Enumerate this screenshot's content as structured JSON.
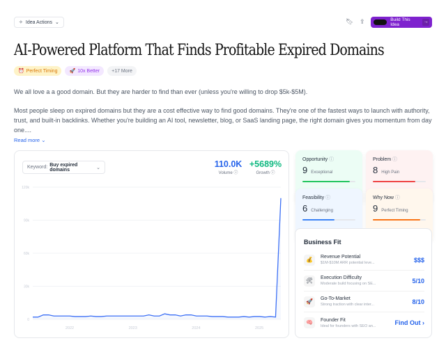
{
  "header": {
    "idea_actions": "Idea Actions",
    "build_label": "Build This Idea"
  },
  "title": "AI-Powered Platform That Finds Profitable Expired Domains",
  "tags": [
    {
      "icon": "alarm-clock-icon",
      "label": "Perfect Timing",
      "color": "#fef3c7",
      "text": "#d97706"
    },
    {
      "icon": "rocket-icon",
      "label": "10x Better",
      "color": "#f3e8ff",
      "text": "#9333ea"
    },
    {
      "label": "+17 More"
    }
  ],
  "description": [
    "We all love a a good domain. But they are harder to find than ever (unless you're willing to drop $5k-$5M).",
    "Most people sleep on expired domains but they are a cost effective way to find good domains. They're one of the fastest ways to launch with authority, trust, and built-in backlinks. Whether you're building an AI tool, newsletter, blog, or SaaS landing page, the right domain gives you momentum from day one...."
  ],
  "read_more": "Read more",
  "trend": {
    "keyword_label": "Keyword:",
    "keyword": "Buy expired domains",
    "volume": "110.0K",
    "volume_label": "Volume",
    "growth": "+5689%",
    "growth_label": "Growth"
  },
  "chart_data": {
    "type": "line",
    "ylim": [
      0,
      120000
    ],
    "yticks": [
      "0",
      "30k",
      "60k",
      "90k",
      "120k"
    ],
    "xticks": [
      "2022",
      "2023",
      "2024",
      "2025"
    ],
    "x_start": "2021-06",
    "x_interval": "month",
    "grid": true,
    "color": "#3b6ff5",
    "values": [
      2000,
      2000,
      4000,
      4000,
      3000,
      3000,
      3000,
      3000,
      2500,
      2500,
      2500,
      3000,
      2500,
      2500,
      3000,
      3000,
      3000,
      3000,
      3000,
      3000,
      3000,
      3000,
      4000,
      3000,
      3000,
      5000,
      4000,
      4000,
      3000,
      4000,
      4000,
      3000,
      3000,
      3000,
      2500,
      2500,
      2500,
      2000,
      2000,
      2000,
      2500,
      2000,
      2500,
      2500,
      2000,
      2500,
      2000,
      110000
    ]
  },
  "scores": [
    {
      "title": "Opportunity",
      "value": 9,
      "label": "Exceptional",
      "color": "#22c55e",
      "bg": "#ecfdf5"
    },
    {
      "title": "Problem",
      "value": 8,
      "label": "High Pain",
      "color": "#ef4444",
      "bg": "#fef2f2"
    },
    {
      "title": "Feasibility",
      "value": 6,
      "label": "Challenging",
      "color": "#3b82f6",
      "bg": "#eff6ff"
    },
    {
      "title": "Why Now",
      "value": 9,
      "label": "Perfect Timing",
      "color": "#f97316",
      "bg": "#fff7ed"
    }
  ],
  "business_fit": {
    "title": "Business Fit",
    "items": [
      {
        "icon": "money-bag-icon",
        "glyph": "💰",
        "name": "Revenue Potential",
        "desc": "$1M-$10M ARR potential leve...",
        "value": "$$$"
      },
      {
        "icon": "tools-icon",
        "glyph": "🛠",
        "name": "Execution Difficulty",
        "desc": "Moderate build focusing on SE...",
        "value": "5/10"
      },
      {
        "icon": "rocket-icon",
        "glyph": "🚀",
        "name": "Go-To-Market",
        "desc": "Strong traction with clear inter...",
        "value": "8/10"
      },
      {
        "icon": "brain-icon",
        "glyph": "🧠",
        "name": "Founder Fit",
        "desc": "Ideal for founders with SEO an...",
        "value": "Find Out ›"
      }
    ]
  }
}
